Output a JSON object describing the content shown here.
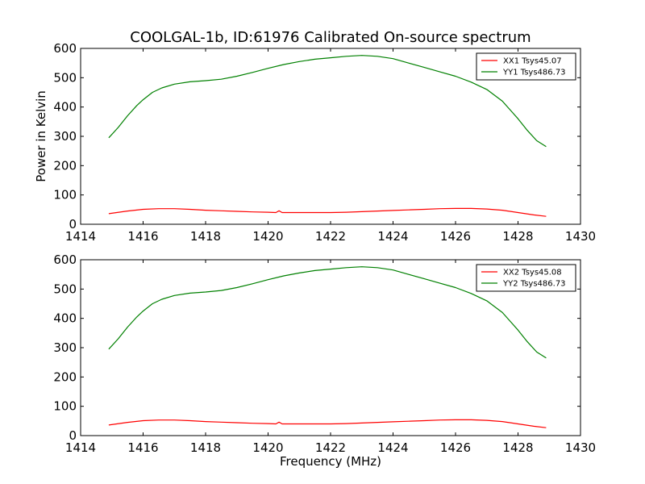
{
  "figure": {
    "title": "COOLGAL-1b, ID:61976 Calibrated On-source spectrum"
  },
  "colors": {
    "red": "#ff0000",
    "green": "#008000",
    "axis": "#000000",
    "background": "#ffffff"
  },
  "chart_data": [
    {
      "type": "line",
      "title": "COOLGAL-1b, ID:61976 Calibrated On-source spectrum",
      "xlabel": "",
      "ylabel": "Power in Kelvin",
      "xlim": [
        1414,
        1430
      ],
      "ylim": [
        0,
        600
      ],
      "xticks": [
        1414,
        1416,
        1418,
        1420,
        1422,
        1424,
        1426,
        1428,
        1430
      ],
      "yticks": [
        0,
        100,
        200,
        300,
        400,
        500,
        600
      ],
      "xtick_labels": [
        "1414",
        "1416",
        "1418",
        "1420",
        "1422",
        "1424",
        "1426",
        "1428",
        "1430"
      ],
      "ytick_labels": [
        "0",
        "100",
        "200",
        "300",
        "400",
        "500",
        "600"
      ],
      "grid": false,
      "legend_position": "top-right",
      "series": [
        {
          "name": "XX1 Tsys45.07",
          "color": "#ff0000",
          "x": [
            1414.9,
            1415.5,
            1416.0,
            1416.5,
            1417.0,
            1417.5,
            1418.0,
            1418.5,
            1419.0,
            1419.5,
            1420.0,
            1420.25,
            1420.35,
            1420.45,
            1421.0,
            1421.5,
            1422.0,
            1422.5,
            1423.0,
            1423.5,
            1424.0,
            1424.5,
            1425.0,
            1425.5,
            1426.0,
            1426.5,
            1427.0,
            1427.5,
            1428.0,
            1428.5,
            1428.9
          ],
          "y": [
            36,
            45,
            51,
            53,
            53,
            51,
            48,
            46,
            44,
            42,
            41,
            40,
            46,
            40,
            40,
            40,
            40,
            41,
            43,
            45,
            47,
            49,
            51,
            53,
            54,
            54,
            52,
            48,
            40,
            32,
            27
          ]
        },
        {
          "name": "YY1 Tsys486.73",
          "color": "#008000",
          "x": [
            1414.9,
            1415.2,
            1415.5,
            1415.8,
            1416.0,
            1416.3,
            1416.6,
            1417.0,
            1417.5,
            1418.0,
            1418.5,
            1419.0,
            1419.5,
            1420.0,
            1420.5,
            1421.0,
            1421.5,
            1422.0,
            1422.5,
            1423.0,
            1423.5,
            1424.0,
            1424.5,
            1425.0,
            1425.5,
            1426.0,
            1426.5,
            1427.0,
            1427.5,
            1428.0,
            1428.3,
            1428.6,
            1428.9
          ],
          "y": [
            295,
            330,
            370,
            405,
            425,
            450,
            465,
            478,
            486,
            490,
            495,
            505,
            518,
            532,
            545,
            555,
            563,
            568,
            573,
            576,
            573,
            565,
            550,
            535,
            520,
            505,
            485,
            460,
            420,
            360,
            320,
            285,
            265
          ]
        }
      ]
    },
    {
      "type": "line",
      "title": "",
      "xlabel": "Frequency (MHz)",
      "ylabel": "",
      "xlim": [
        1414,
        1430
      ],
      "ylim": [
        0,
        600
      ],
      "xticks": [
        1414,
        1416,
        1418,
        1420,
        1422,
        1424,
        1426,
        1428,
        1430
      ],
      "yticks": [
        0,
        100,
        200,
        300,
        400,
        500,
        600
      ],
      "xtick_labels": [
        "1414",
        "1416",
        "1418",
        "1420",
        "1422",
        "1424",
        "1426",
        "1428",
        "1430"
      ],
      "ytick_labels": [
        "0",
        "100",
        "200",
        "300",
        "400",
        "500",
        "600"
      ],
      "grid": false,
      "legend_position": "top-right",
      "series": [
        {
          "name": "XX2 Tsys45.08",
          "color": "#ff0000",
          "x": [
            1414.9,
            1415.5,
            1416.0,
            1416.5,
            1417.0,
            1417.5,
            1418.0,
            1418.5,
            1419.0,
            1419.5,
            1420.0,
            1420.25,
            1420.35,
            1420.45,
            1421.0,
            1421.5,
            1422.0,
            1422.5,
            1423.0,
            1423.5,
            1424.0,
            1424.5,
            1425.0,
            1425.5,
            1426.0,
            1426.5,
            1427.0,
            1427.5,
            1428.0,
            1428.5,
            1428.9
          ],
          "y": [
            36,
            45,
            51,
            53,
            53,
            51,
            48,
            46,
            44,
            42,
            41,
            40,
            46,
            40,
            40,
            40,
            40,
            41,
            43,
            45,
            47,
            49,
            51,
            53,
            54,
            54,
            52,
            48,
            40,
            32,
            27
          ]
        },
        {
          "name": "YY2 Tsys486.73",
          "color": "#008000",
          "x": [
            1414.9,
            1415.2,
            1415.5,
            1415.8,
            1416.0,
            1416.3,
            1416.6,
            1417.0,
            1417.5,
            1418.0,
            1418.5,
            1419.0,
            1419.5,
            1420.0,
            1420.5,
            1421.0,
            1421.5,
            1422.0,
            1422.5,
            1423.0,
            1423.5,
            1424.0,
            1424.5,
            1425.0,
            1425.5,
            1426.0,
            1426.5,
            1427.0,
            1427.5,
            1428.0,
            1428.3,
            1428.6,
            1428.9
          ],
          "y": [
            295,
            330,
            370,
            405,
            425,
            450,
            465,
            478,
            486,
            490,
            495,
            505,
            518,
            532,
            545,
            555,
            563,
            568,
            573,
            576,
            573,
            565,
            550,
            535,
            520,
            505,
            485,
            460,
            420,
            360,
            320,
            285,
            265
          ]
        }
      ]
    }
  ]
}
